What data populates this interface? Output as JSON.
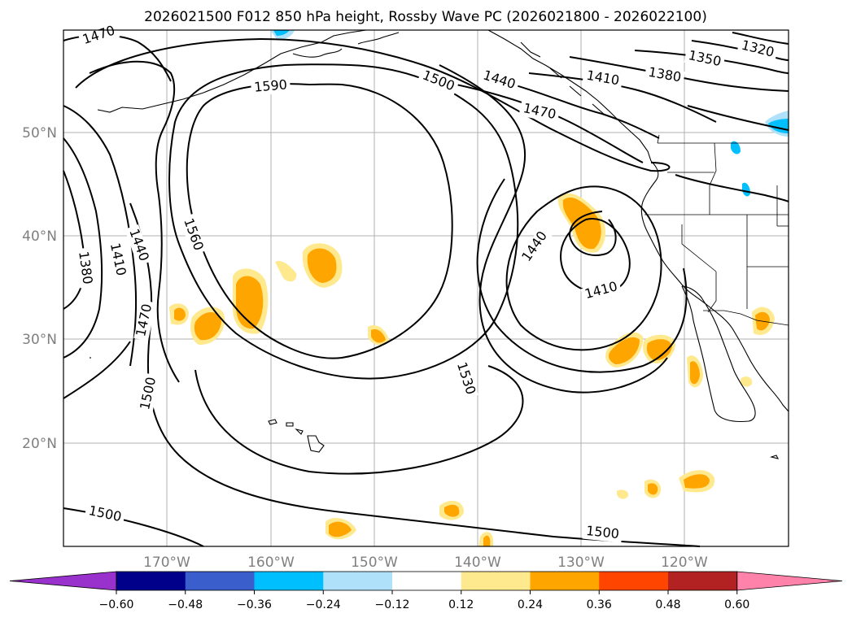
{
  "title": "2026021500 F012 850 hPa height, Rossby Wave PC (2026021800 - 2026022100)",
  "lat_labels": [
    "50°N",
    "40°N",
    "30°N",
    "20°N"
  ],
  "lon_labels": [
    "170°W",
    "160°W",
    "150°W",
    "140°W",
    "130°W",
    "120°W"
  ],
  "contour_labels": [
    "1470",
    "1590",
    "1500",
    "1440",
    "1470",
    "1410",
    "1380",
    "1350",
    "1320",
    "1560",
    "1440",
    "1410",
    "1380",
    "1470",
    "1500",
    "1440",
    "1410",
    "1530",
    "1500",
    "1500"
  ],
  "colorbar": {
    "ticks": [
      "−0.60",
      "−0.48",
      "−0.36",
      "−0.24",
      "−0.12",
      "0.12",
      "0.24",
      "0.36",
      "0.48",
      "0.60"
    ],
    "colors": [
      "#9932cc",
      "#00008b",
      "#3a5fcd",
      "#00bfff",
      "#afe1fa",
      "#ffffff",
      "#ffe98f",
      "#ffa500",
      "#ff4500",
      "#b22222",
      "#ff82ab"
    ]
  },
  "anomaly_colors": {
    "positive_light": "#ffe98f",
    "positive": "#ffa500",
    "negative_light": "#afe1fa",
    "negative": "#00bfff"
  }
}
